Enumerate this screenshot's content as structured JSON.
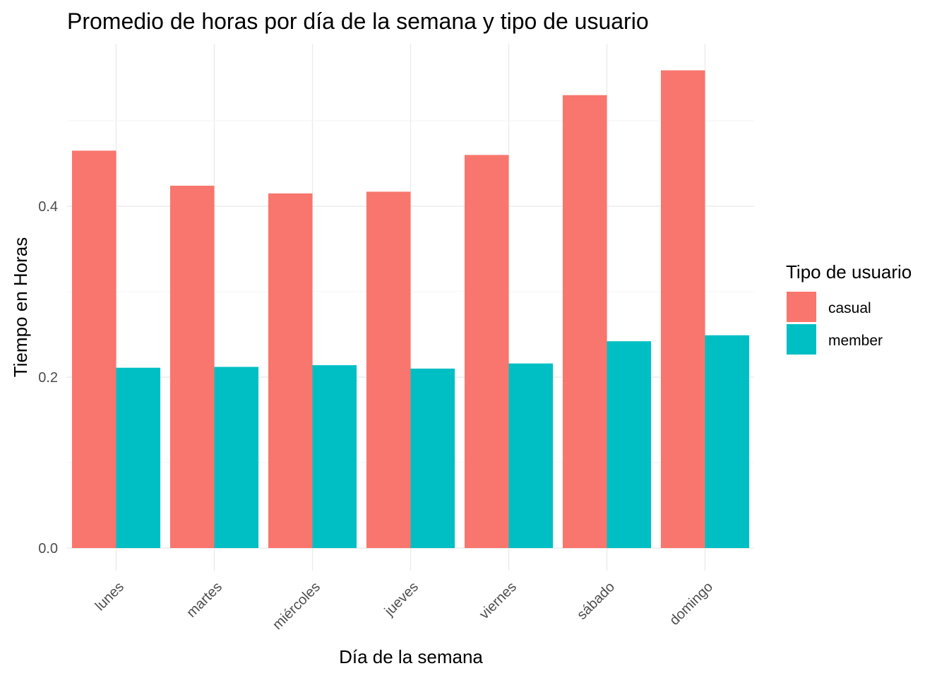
{
  "chart_data": {
    "type": "bar",
    "title": "Promedio de horas por día de la semana y tipo de usuario",
    "xlabel": "Día de la semana",
    "ylabel": "Tiempo en Horas",
    "categories": [
      "lunes",
      "martes",
      "miércoles",
      "jueves",
      "viernes",
      "sábado",
      "domingo"
    ],
    "series": [
      {
        "name": "casual",
        "color": "#F8766D",
        "values": [
          0.465,
          0.424,
          0.415,
          0.417,
          0.46,
          0.53,
          0.559
        ]
      },
      {
        "name": "member",
        "color": "#00BFC4",
        "values": [
          0.211,
          0.212,
          0.214,
          0.21,
          0.216,
          0.242,
          0.249
        ]
      }
    ],
    "ylim": [
      0,
      0.59
    ],
    "yticks": [
      0.0,
      0.2,
      0.4
    ],
    "ytick_labels": [
      "0.0",
      "0.2",
      "0.4"
    ],
    "grid": true,
    "legend": {
      "title": "Tipo de usuario",
      "position": "right"
    }
  }
}
